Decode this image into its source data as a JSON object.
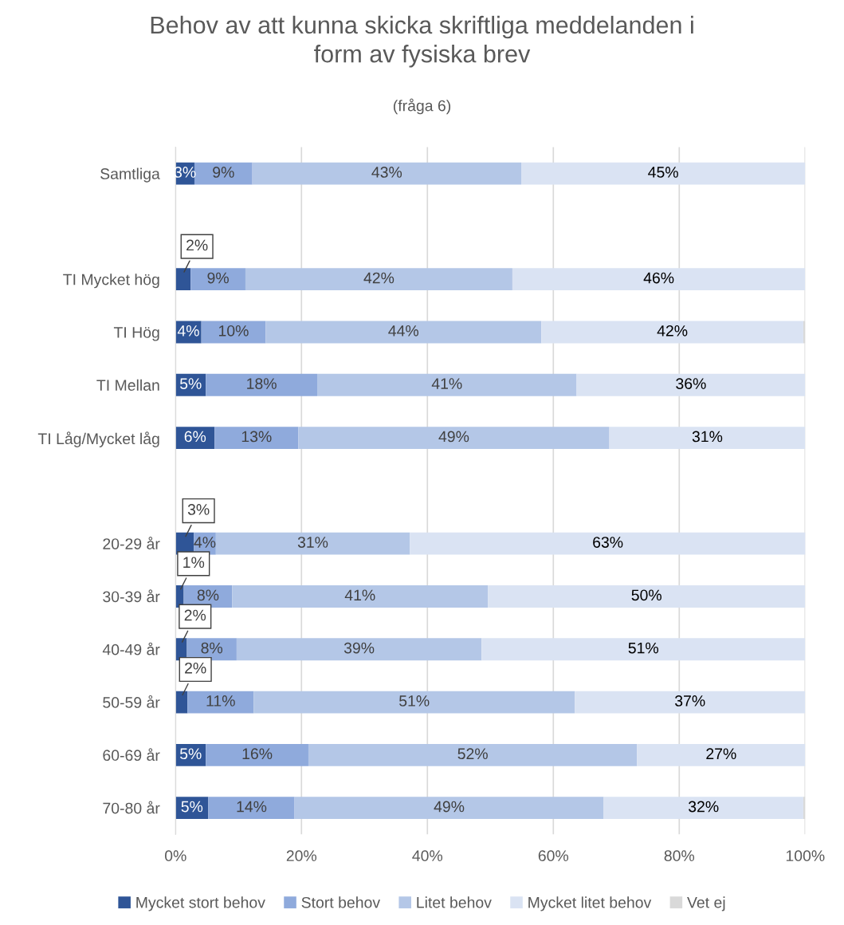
{
  "chart_data": {
    "type": "bar",
    "orientation": "horizontal",
    "stacked": true,
    "title": "Behov av att kunna skicka skriftliga meddelanden i\nform av fysiska brev",
    "subtitle": "(fråga 6)",
    "categories": [
      "Samtliga",
      null,
      "TI Mycket hög",
      "TI Hög",
      "TI Mellan",
      "TI Låg/Mycket låg",
      null,
      "20-29 år",
      "30-39 år",
      "40-49 år",
      "50-59 år",
      "60-69 år",
      "70-80 år"
    ],
    "series": [
      {
        "name": "Mycket stort behov",
        "color": "#2f5597",
        "values": [
          3.0,
          null,
          2.4,
          4.1,
          4.8,
          6.2,
          null,
          2.9,
          1.3,
          1.8,
          1.9,
          4.8,
          5.2
        ],
        "value_labels": [
          "3%",
          null,
          "2%",
          "4%",
          "5%",
          "6%",
          null,
          "3%",
          "1%",
          "2%",
          "2%",
          "5%",
          "5%"
        ]
      },
      {
        "name": "Stort behov",
        "color": "#8faadc",
        "values": [
          9.2,
          null,
          8.7,
          10.2,
          17.7,
          13.3,
          null,
          3.5,
          7.7,
          7.9,
          10.5,
          16.3,
          13.7
        ],
        "value_labels": [
          "9%",
          null,
          "9%",
          "10%",
          "18%",
          "13%",
          null,
          "4%",
          "8%",
          "8%",
          "11%",
          "16%",
          "14%"
        ]
      },
      {
        "name": "Litet behov",
        "color": "#b4c7e7",
        "values": [
          42.7,
          null,
          42.4,
          43.8,
          41.2,
          49.4,
          null,
          30.8,
          40.6,
          38.9,
          51.0,
          52.2,
          49.1
        ],
        "value_labels": [
          "43%",
          null,
          "42%",
          "44%",
          "41%",
          "49%",
          null,
          "31%",
          "41%",
          "39%",
          "51%",
          "52%",
          "49%"
        ]
      },
      {
        "name": "Mycket litet behov",
        "color": "#dae3f3",
        "values": [
          45.1,
          null,
          46.5,
          41.6,
          36.3,
          31.1,
          null,
          62.9,
          50.4,
          51.4,
          36.6,
          26.7,
          31.7
        ],
        "value_labels": [
          "45%",
          null,
          "46%",
          "42%",
          "36%",
          "31%",
          null,
          "63%",
          "50%",
          "51%",
          "37%",
          "27%",
          "32%"
        ]
      },
      {
        "name": "Vet ej",
        "color": "#d9d9d9",
        "values": [
          null,
          null,
          null,
          0.3,
          null,
          null,
          null,
          null,
          null,
          null,
          null,
          null,
          0.3
        ],
        "value_labels": [
          null,
          null,
          null,
          null,
          null,
          null,
          null,
          null,
          null,
          null,
          null,
          null,
          null
        ]
      }
    ],
    "xlim": [
      0,
      100
    ],
    "xticks": [
      {
        "value": 0,
        "label": "0%"
      },
      {
        "value": 20,
        "label": "20%"
      },
      {
        "value": 40,
        "label": "40%"
      },
      {
        "value": 60,
        "label": "60%"
      },
      {
        "value": 80,
        "label": "80%"
      },
      {
        "value": 100,
        "label": "100%"
      }
    ],
    "grid": "x",
    "legend": "bottom"
  }
}
